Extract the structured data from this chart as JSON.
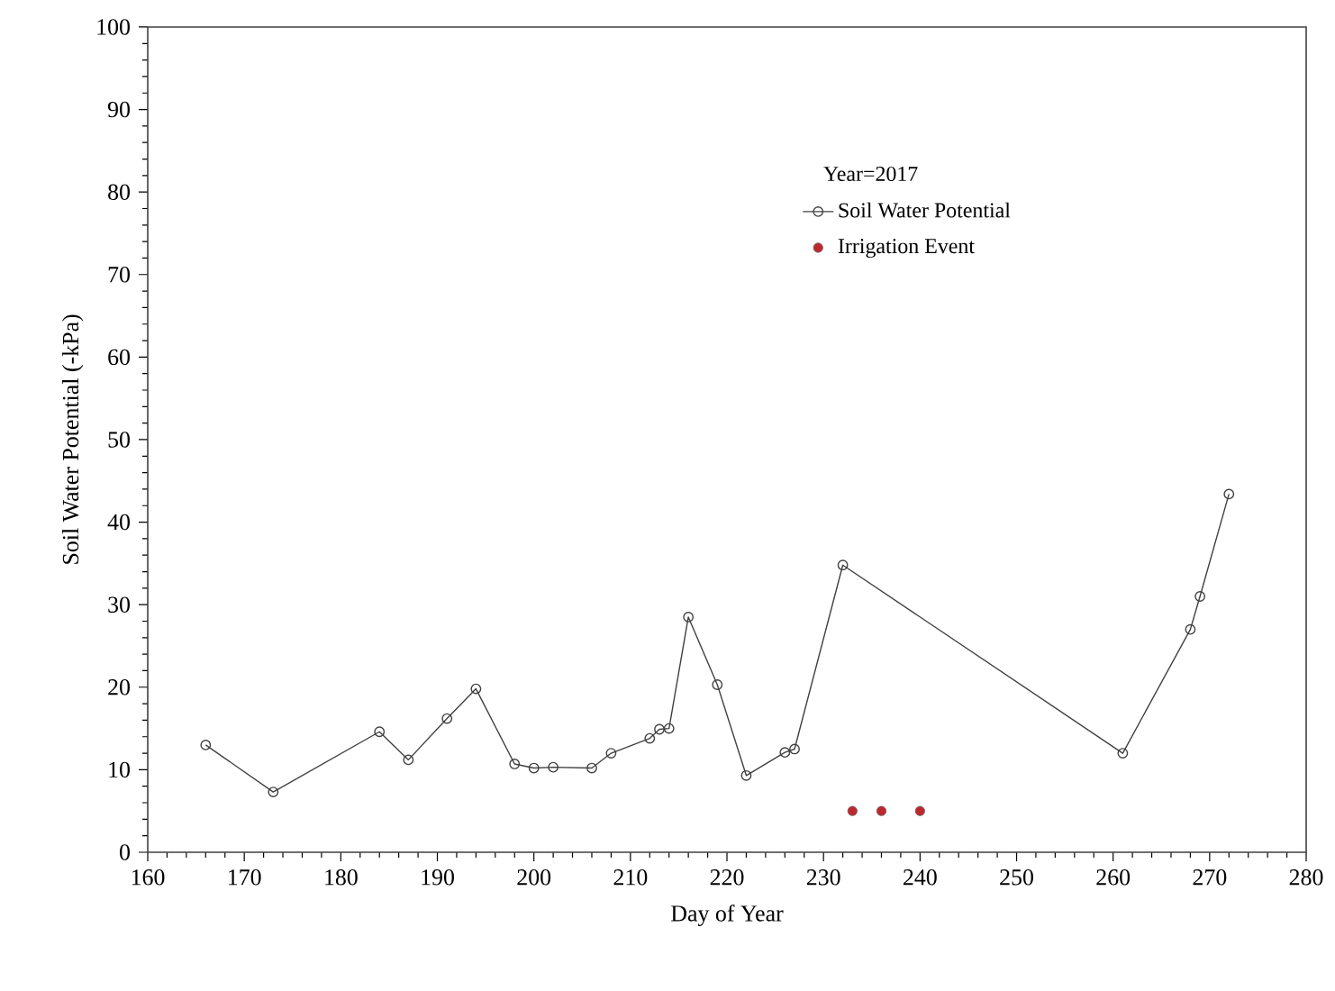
{
  "chart_data": {
    "type": "line",
    "xlabel": "Day of Year",
    "ylabel": "Soil Water Potential (-kPa)",
    "legend_title": "Year=2017",
    "xlim": [
      160,
      280
    ],
    "xticks": [
      160,
      170,
      180,
      190,
      200,
      210,
      220,
      230,
      240,
      250,
      260,
      270,
      280
    ],
    "ylim": [
      0,
      100
    ],
    "yticks": [
      0,
      10,
      20,
      30,
      40,
      50,
      60,
      70,
      80,
      90,
      100
    ],
    "grid": false,
    "legend": "top right",
    "series": [
      {
        "name": "Soil Water Potential",
        "color": "#404040",
        "marker": "circle",
        "line_style": "solid",
        "x": [
          166,
          173,
          184,
          187,
          191,
          194,
          198,
          200,
          202,
          206,
          208,
          212,
          213,
          214,
          216,
          219,
          222,
          226,
          227,
          232,
          261,
          268,
          269,
          272
        ],
        "values": [
          13,
          7.3,
          14.6,
          11.2,
          16.2,
          19.8,
          10.7,
          10.2,
          10.3,
          10.2,
          12,
          13.8,
          14.9,
          15,
          28.5,
          20.3,
          9.3,
          12.1,
          12.5,
          34.8,
          12,
          27,
          31,
          43.4
        ]
      },
      {
        "name": "Irrigation Event",
        "type": "scatter",
        "color": "#c0272d",
        "marker": "circle",
        "x": [
          233,
          236,
          240
        ],
        "values": [
          5,
          5,
          5
        ]
      }
    ]
  }
}
